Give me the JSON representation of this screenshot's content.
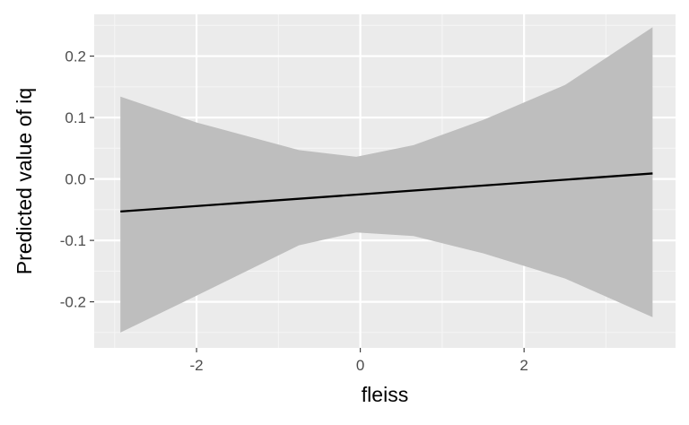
{
  "chart_data": {
    "type": "line",
    "title": "",
    "xlabel": "fleiss",
    "ylabel": "Predicted value of iq",
    "xlim": [
      -3.25,
      3.85
    ],
    "ylim": [
      -0.275,
      0.268
    ],
    "x_ticks": [
      -2,
      0,
      2
    ],
    "x_tick_labels": [
      "-2",
      "0",
      "2"
    ],
    "y_ticks": [
      -0.2,
      -0.1,
      0.0,
      0.1,
      0.2
    ],
    "y_tick_labels": [
      "-0.2",
      "-0.1",
      "0.0",
      "0.1",
      "0.2"
    ],
    "grid": true,
    "series": [
      {
        "x": [
          -2.93,
          3.57
        ],
        "y": [
          -0.053,
          0.009
        ],
        "ci_x": [
          -2.93,
          -2.0,
          -0.75,
          -0.05,
          0.65,
          1.5,
          2.5,
          3.57
        ],
        "ci_lower": [
          -0.25,
          -0.19,
          -0.108,
          -0.087,
          -0.093,
          -0.121,
          -0.162,
          -0.225
        ],
        "ci_upper": [
          0.134,
          0.092,
          0.047,
          0.036,
          0.055,
          0.096,
          0.153,
          0.247
        ],
        "line_color": "#000000",
        "ribbon_color": "#bebebe"
      }
    ],
    "colors": {
      "panel_background": "#ebebeb",
      "grid_major": "#ffffff",
      "grid_minor": "#f5f5f5",
      "tick_mark": "#333333",
      "tick_label": "#4d4d4d"
    }
  }
}
